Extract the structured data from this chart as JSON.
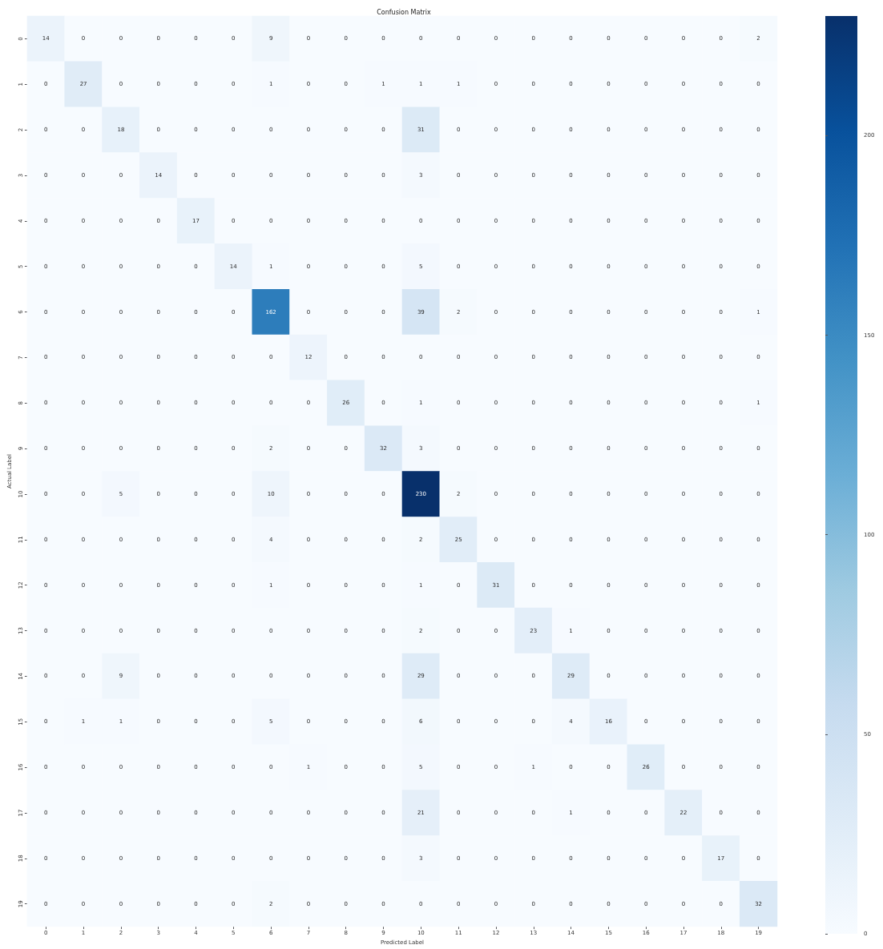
{
  "chart_data": {
    "type": "heatmap",
    "title": "Confusion Matrix",
    "xlabel": "Predicted Label",
    "ylabel": "Actual Label",
    "categories": [
      "0",
      "1",
      "2",
      "3",
      "4",
      "5",
      "6",
      "7",
      "8",
      "9",
      "10",
      "11",
      "12",
      "13",
      "14",
      "15",
      "16",
      "17",
      "18",
      "19"
    ],
    "y_categories": [
      "0",
      "1",
      "2",
      "3",
      "4",
      "5",
      "6",
      "7",
      "8",
      "9",
      "10",
      "11",
      "12",
      "13",
      "14",
      "15",
      "16",
      "17",
      "18",
      "19"
    ],
    "cells": [
      [
        14,
        0,
        0,
        0,
        0,
        0,
        9,
        0,
        0,
        0,
        0,
        0,
        0,
        0,
        0,
        0,
        0,
        0,
        0,
        2
      ],
      [
        0,
        27,
        0,
        0,
        0,
        0,
        1,
        0,
        0,
        1,
        1,
        1,
        0,
        0,
        0,
        0,
        0,
        0,
        0,
        0
      ],
      [
        0,
        0,
        18,
        0,
        0,
        0,
        0,
        0,
        0,
        0,
        31,
        0,
        0,
        0,
        0,
        0,
        0,
        0,
        0,
        0
      ],
      [
        0,
        0,
        0,
        14,
        0,
        0,
        0,
        0,
        0,
        0,
        3,
        0,
        0,
        0,
        0,
        0,
        0,
        0,
        0,
        0
      ],
      [
        0,
        0,
        0,
        0,
        17,
        0,
        0,
        0,
        0,
        0,
        0,
        0,
        0,
        0,
        0,
        0,
        0,
        0,
        0,
        0
      ],
      [
        0,
        0,
        0,
        0,
        0,
        14,
        1,
        0,
        0,
        0,
        5,
        0,
        0,
        0,
        0,
        0,
        0,
        0,
        0,
        0
      ],
      [
        0,
        0,
        0,
        0,
        0,
        0,
        162,
        0,
        0,
        0,
        39,
        2,
        0,
        0,
        0,
        0,
        0,
        0,
        0,
        1
      ],
      [
        0,
        0,
        0,
        0,
        0,
        0,
        0,
        12,
        0,
        0,
        0,
        0,
        0,
        0,
        0,
        0,
        0,
        0,
        0,
        0
      ],
      [
        0,
        0,
        0,
        0,
        0,
        0,
        0,
        0,
        26,
        0,
        1,
        0,
        0,
        0,
        0,
        0,
        0,
        0,
        0,
        1
      ],
      [
        0,
        0,
        0,
        0,
        0,
        0,
        2,
        0,
        0,
        32,
        3,
        0,
        0,
        0,
        0,
        0,
        0,
        0,
        0,
        0
      ],
      [
        0,
        0,
        5,
        0,
        0,
        0,
        10,
        0,
        0,
        0,
        230,
        2,
        0,
        0,
        0,
        0,
        0,
        0,
        0,
        0
      ],
      [
        0,
        0,
        0,
        0,
        0,
        0,
        4,
        0,
        0,
        0,
        2,
        25,
        0,
        0,
        0,
        0,
        0,
        0,
        0,
        0
      ],
      [
        0,
        0,
        0,
        0,
        0,
        0,
        1,
        0,
        0,
        0,
        1,
        0,
        31,
        0,
        0,
        0,
        0,
        0,
        0,
        0
      ],
      [
        0,
        0,
        0,
        0,
        0,
        0,
        0,
        0,
        0,
        0,
        2,
        0,
        0,
        23,
        1,
        0,
        0,
        0,
        0,
        0
      ],
      [
        0,
        0,
        9,
        0,
        0,
        0,
        0,
        0,
        0,
        0,
        29,
        0,
        0,
        0,
        29,
        0,
        0,
        0,
        0,
        0
      ],
      [
        0,
        1,
        1,
        0,
        0,
        0,
        5,
        0,
        0,
        0,
        6,
        0,
        0,
        0,
        4,
        16,
        0,
        0,
        0,
        0
      ],
      [
        0,
        0,
        0,
        0,
        0,
        0,
        0,
        1,
        0,
        0,
        5,
        0,
        0,
        1,
        0,
        0,
        26,
        0,
        0,
        0
      ],
      [
        0,
        0,
        0,
        0,
        0,
        0,
        0,
        0,
        0,
        0,
        21,
        0,
        0,
        0,
        1,
        0,
        0,
        22,
        0,
        0
      ],
      [
        0,
        0,
        0,
        0,
        0,
        0,
        0,
        0,
        0,
        0,
        3,
        0,
        0,
        0,
        0,
        0,
        0,
        0,
        17,
        0
      ],
      [
        0,
        0,
        0,
        0,
        0,
        0,
        2,
        0,
        0,
        0,
        0,
        0,
        0,
        0,
        0,
        0,
        0,
        0,
        0,
        32
      ]
    ],
    "clim": [
      0,
      230
    ],
    "cticks": [
      0,
      50,
      100,
      150,
      200
    ],
    "data_labels": true
  }
}
